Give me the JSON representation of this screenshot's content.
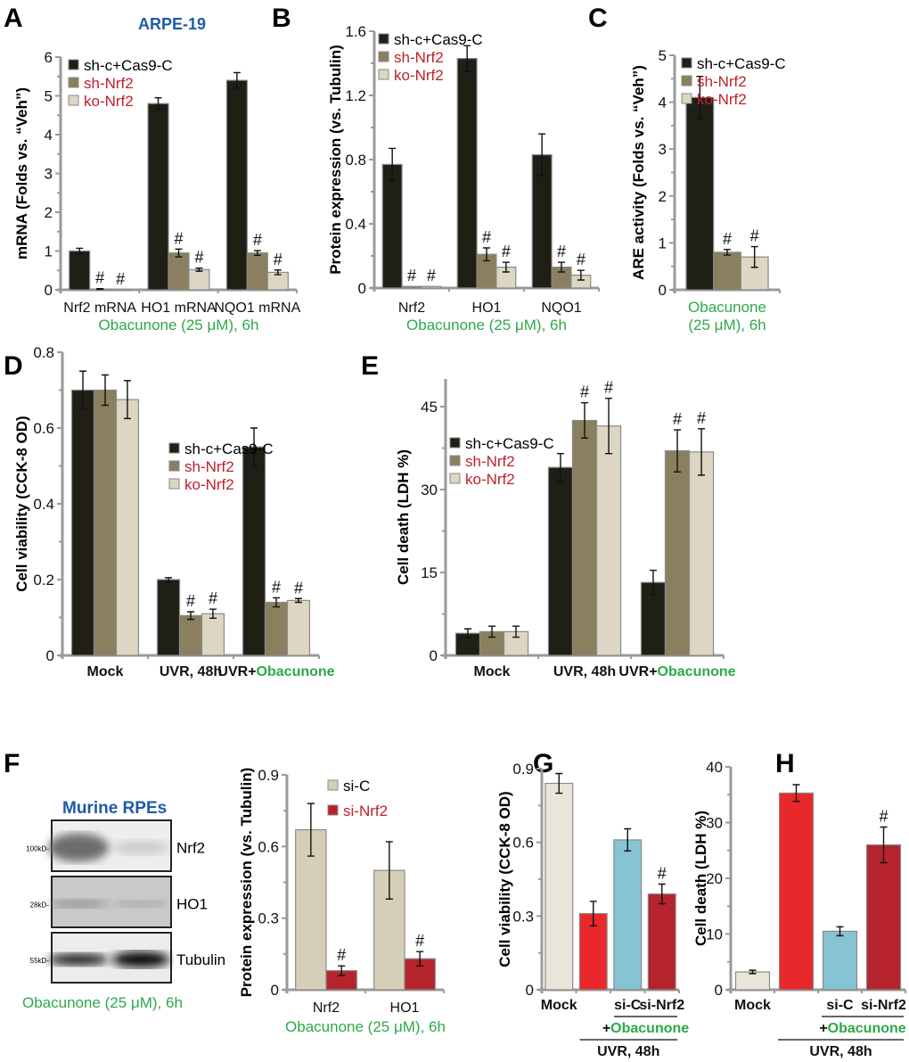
{
  "panel_labels": [
    "A",
    "B",
    "C",
    "D",
    "E",
    "F",
    "G",
    "H"
  ],
  "cell_line_title": "ARPE-19",
  "western_blot": {
    "title": "Murine RPEs",
    "lanes": [
      "si-C",
      "si-Nrf2"
    ],
    "bands": [
      {
        "name": "Nrf2",
        "marker": "100kD-"
      },
      {
        "name": "HO1",
        "marker": "28kD-"
      },
      {
        "name": "Tubulin",
        "marker": "55kD-"
      }
    ],
    "caption": "Obacunone (25 μM), 6h"
  },
  "colors": {
    "dark": "#1f1f16",
    "olive": "#8a7f5e",
    "light": "#dcd6c2",
    "red_text": "#c0202a",
    "green_text": "#2ea84a",
    "blue_title": "#1f5aa8"
  },
  "chart_data": [
    {
      "panel": "A",
      "type": "bar",
      "ylabel": "mRNA (Folds vs. “Veh”)",
      "ylim": [
        0,
        6
      ],
      "yticks": [
        0,
        1,
        2,
        3,
        4,
        5,
        6
      ],
      "categories": [
        "Nrf2  mRNA",
        "HO1  mRNA",
        "NQO1  mRNA"
      ],
      "xlabel": "Obacunone (25 μM), 6h",
      "series": [
        {
          "name": "sh-c+Cas9-C",
          "color": "#1f1f16",
          "label_color": "#000",
          "values": [
            1.0,
            4.8,
            5.4
          ],
          "errors": [
            0.07,
            0.15,
            0.2
          ],
          "marks": [
            "",
            "",
            ""
          ]
        },
        {
          "name": "sh-Nrf2",
          "color": "#8a7f5e",
          "label_color": "#c0202a",
          "values": [
            0.02,
            0.95,
            0.95
          ],
          "errors": [
            0.01,
            0.1,
            0.06
          ],
          "marks": [
            "#",
            "#",
            "#"
          ]
        },
        {
          "name": "ko-Nrf2",
          "color": "#dcd6c2",
          "label_color": "#c0202a",
          "values": [
            0.0,
            0.52,
            0.45
          ],
          "errors": [
            0,
            0.04,
            0.06
          ],
          "marks": [
            "#",
            "#",
            "#"
          ]
        }
      ]
    },
    {
      "panel": "B",
      "type": "bar",
      "ylabel": "Protein expression (vs. Tubulin)",
      "ylim": [
        0,
        1.6
      ],
      "yticks": [
        0,
        0.4,
        0.8,
        1.2,
        1.6
      ],
      "categories": [
        "Nrf2",
        "HO1",
        "NQO1"
      ],
      "xlabel": "Obacunone (25 μM), 6h",
      "series": [
        {
          "name": "sh-c+Cas9-C",
          "color": "#1f1f16",
          "label_color": "#000",
          "values": [
            0.77,
            1.43,
            0.83
          ],
          "errors": [
            0.1,
            0.08,
            0.13
          ],
          "marks": [
            "",
            "",
            ""
          ]
        },
        {
          "name": "sh-Nrf2",
          "color": "#8a7f5e",
          "label_color": "#c0202a",
          "values": [
            0.01,
            0.21,
            0.13
          ],
          "errors": [
            0,
            0.04,
            0.03
          ],
          "marks": [
            "#",
            "#",
            "#"
          ]
        },
        {
          "name": "ko-Nrf2",
          "color": "#dcd6c2",
          "label_color": "#c0202a",
          "values": [
            0.01,
            0.13,
            0.08
          ],
          "errors": [
            0,
            0.03,
            0.03
          ],
          "marks": [
            "#",
            "#",
            "#"
          ]
        }
      ]
    },
    {
      "panel": "C",
      "type": "bar",
      "ylabel": "ARE activity (Folds vs. “Veh”)",
      "ylim": [
        0,
        5
      ],
      "yticks": [
        0,
        1,
        2,
        3,
        4,
        5
      ],
      "categories": [
        ""
      ],
      "xlabel": "Obacunone",
      "xlabel2": "(25 μM), 6h",
      "series": [
        {
          "name": "sh-c+Cas9-C",
          "color": "#1f1f16",
          "label_color": "#000",
          "values": [
            4.1
          ],
          "errors": [
            0.45
          ],
          "marks": [
            ""
          ]
        },
        {
          "name": "sh-Nrf2",
          "color": "#8a7f5e",
          "label_color": "#c0202a",
          "values": [
            0.8
          ],
          "errors": [
            0.06
          ],
          "marks": [
            "#"
          ]
        },
        {
          "name": "ko-Nrf2",
          "color": "#dcd6c2",
          "label_color": "#c0202a",
          "values": [
            0.7
          ],
          "errors": [
            0.22
          ],
          "marks": [
            "#"
          ]
        }
      ]
    },
    {
      "panel": "D",
      "type": "bar",
      "ylabel": "Cell viability (CCK-8 OD)",
      "ylim": [
        0,
        0.8
      ],
      "yticks": [
        0,
        0.2,
        0.4,
        0.6,
        0.8
      ],
      "categories": [
        [
          "Mock"
        ],
        [
          "UVR, 48h"
        ],
        [
          "UVR+",
          "Obacunone"
        ]
      ],
      "series": [
        {
          "name": "sh-c+Cas9-C",
          "color": "#1f1f16",
          "label_color": "#000",
          "values": [
            0.7,
            0.2,
            0.55
          ],
          "errors": [
            0.05,
            0.005,
            0.05
          ],
          "marks": [
            "",
            "",
            ""
          ]
        },
        {
          "name": "sh-Nrf2",
          "color": "#8a7f5e",
          "label_color": "#c0202a",
          "values": [
            0.7,
            0.105,
            0.14
          ],
          "errors": [
            0.04,
            0.01,
            0.012
          ],
          "marks": [
            "",
            "#",
            "#"
          ]
        },
        {
          "name": "ko-Nrf2",
          "color": "#dcd6c2",
          "label_color": "#c0202a",
          "values": [
            0.675,
            0.11,
            0.145
          ],
          "errors": [
            0.05,
            0.012,
            0.005
          ],
          "marks": [
            "",
            "#",
            "#"
          ]
        }
      ]
    },
    {
      "panel": "E",
      "type": "bar",
      "ylabel": "Cell death (LDH %)",
      "ylim": [
        0,
        50
      ],
      "yticks": [
        0,
        15,
        30,
        45
      ],
      "categories": [
        [
          "Mock"
        ],
        [
          "UVR, 48h"
        ],
        [
          "UVR+",
          "Obacunone"
        ]
      ],
      "series": [
        {
          "name": "sh-c+Cas9-C",
          "color": "#1f1f16",
          "label_color": "#000",
          "values": [
            4.0,
            34.0,
            13.2
          ],
          "errors": [
            0.8,
            2.5,
            2.2
          ],
          "marks": [
            "",
            "",
            ""
          ]
        },
        {
          "name": "sh-Nrf2",
          "color": "#8a7f5e",
          "label_color": "#c0202a",
          "values": [
            4.3,
            42.5,
            37.0
          ],
          "errors": [
            1.0,
            3.2,
            3.8
          ],
          "marks": [
            "",
            "#",
            "#"
          ]
        },
        {
          "name": "ko-Nrf2",
          "color": "#dcd6c2",
          "label_color": "#c0202a",
          "values": [
            4.3,
            41.5,
            36.8
          ],
          "errors": [
            1.0,
            5.0,
            4.2
          ],
          "marks": [
            "",
            "#",
            "#"
          ]
        }
      ]
    },
    {
      "panel": "F",
      "type": "bar",
      "ylabel": "Protein expression (vs. Tubulin)",
      "ylim": [
        0,
        0.9
      ],
      "yticks": [
        0,
        0.3,
        0.6,
        0.9
      ],
      "categories": [
        "Nrf2",
        "HO1"
      ],
      "xlabel": "Obacunone (25 μM), 6h",
      "series": [
        {
          "name": "si-C",
          "color": "#d6cfb8",
          "label_color": "#000",
          "values": [
            0.67,
            0.5
          ],
          "errors": [
            0.11,
            0.12
          ],
          "marks": [
            "",
            ""
          ]
        },
        {
          "name": "si-Nrf2",
          "color": "#b5242c",
          "label_color": "#c0202a",
          "values": [
            0.08,
            0.13
          ],
          "errors": [
            0.02,
            0.03
          ],
          "marks": [
            "#",
            "#"
          ]
        }
      ]
    },
    {
      "panel": "G",
      "type": "bar",
      "ylabel": "Cell viability (CCK-8 OD)",
      "ylim": [
        0,
        0.9
      ],
      "yticks": [
        0,
        0.3,
        0.6,
        0.9
      ],
      "categories": [
        [
          "Mock"
        ],
        [
          ""
        ],
        [
          "si-C"
        ],
        [
          "si-Nrf2"
        ]
      ],
      "annotations": [
        {
          "text": [
            "+",
            "Obacunone"
          ],
          "span": [
            2,
            3
          ]
        },
        {
          "text": [
            "UVR, 48h"
          ],
          "span": [
            1,
            3
          ]
        }
      ],
      "series": [
        {
          "colors": [
            "#e9e5d9",
            "#e8282a",
            "#86c3d3",
            "#b5242c"
          ],
          "values": [
            0.84,
            0.31,
            0.61,
            0.39
          ],
          "errors": [
            0.04,
            0.05,
            0.045,
            0.04
          ],
          "marks": [
            "",
            "",
            "",
            "#"
          ]
        }
      ]
    },
    {
      "panel": "H",
      "type": "bar",
      "ylabel": "Cell death (LDH %)",
      "ylim": [
        0,
        40
      ],
      "yticks": [
        0,
        10,
        20,
        30,
        40
      ],
      "categories": [
        [
          "Mock"
        ],
        [
          ""
        ],
        [
          "si-C"
        ],
        [
          "si-Nrf2"
        ]
      ],
      "annotations": [
        {
          "text": [
            "+",
            "Obacunone"
          ],
          "span": [
            2,
            3
          ]
        },
        {
          "text": [
            "UVR, 48h"
          ],
          "span": [
            1,
            3
          ]
        }
      ],
      "series": [
        {
          "colors": [
            "#e9e5d9",
            "#e8282a",
            "#86c3d3",
            "#b5242c"
          ],
          "values": [
            3.2,
            35.3,
            10.5,
            26.0
          ],
          "errors": [
            0.3,
            1.5,
            0.8,
            3.2
          ],
          "marks": [
            "",
            "",
            "",
            "#"
          ]
        }
      ]
    }
  ]
}
